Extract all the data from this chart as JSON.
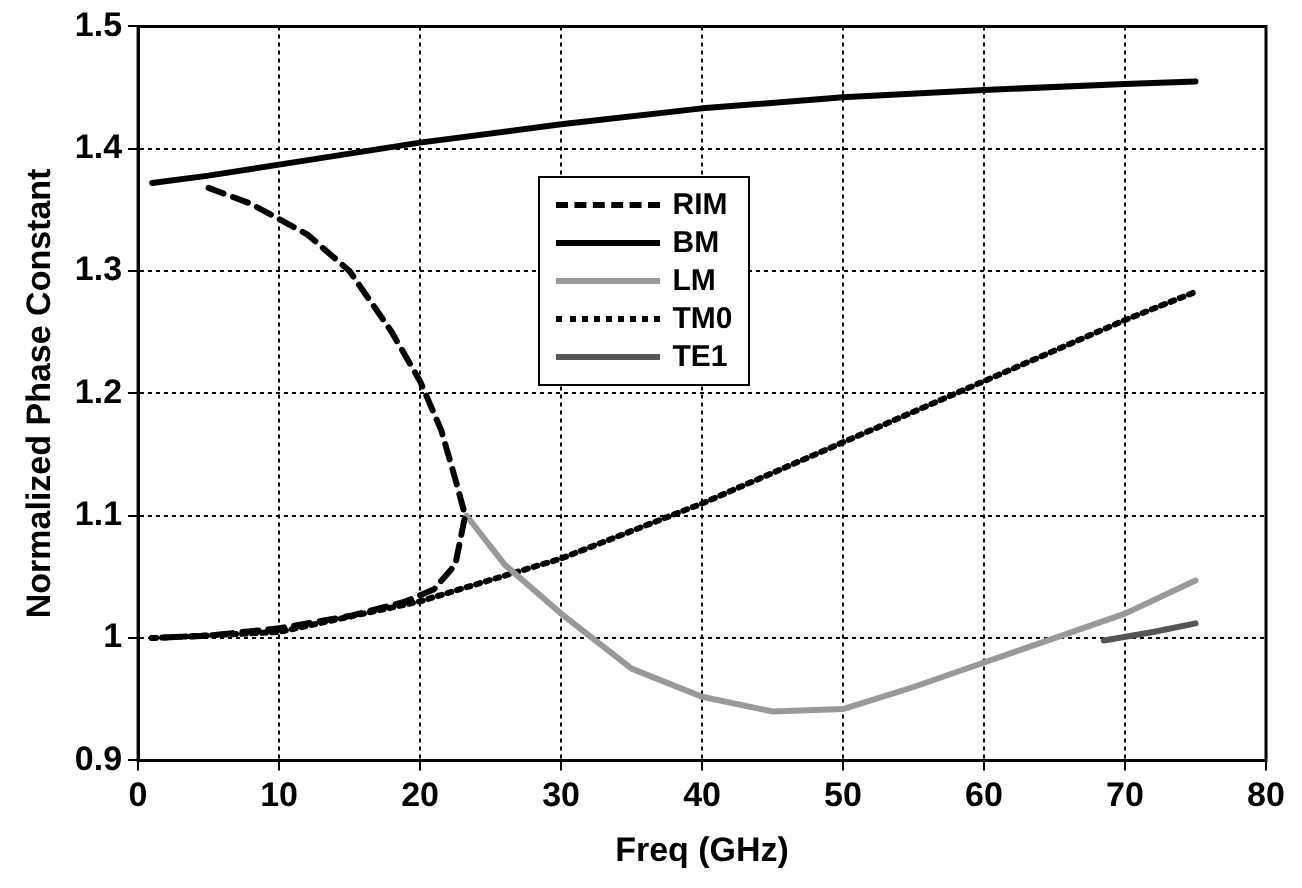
{
  "chart_data": {
    "type": "line",
    "xlabel": "Freq (GHz)",
    "ylabel": "Normalized Phase Constant",
    "xlim": [
      0,
      80
    ],
    "xticks": [
      0,
      10,
      20,
      30,
      40,
      50,
      60,
      70,
      80
    ],
    "ylim": [
      0.9,
      1.5
    ],
    "yticks": [
      0.9,
      1,
      1.1,
      1.2,
      1.3,
      1.4,
      1.5
    ],
    "grid": true,
    "legend": "top",
    "marker": "none",
    "series": [
      {
        "name": "RIM",
        "color": "#000000",
        "line_style": "dashed",
        "x": [
          5,
          8,
          12,
          15,
          18,
          20,
          21.5,
          22.5,
          23.2,
          22.5,
          21,
          19,
          15,
          10,
          5,
          1
        ],
        "values": [
          1.368,
          1.355,
          1.33,
          1.3,
          1.25,
          1.21,
          1.17,
          1.13,
          1.1,
          1.06,
          1.04,
          1.03,
          1.018,
          1.008,
          1.002,
          1
        ]
      },
      {
        "name": "BM",
        "color": "#000000",
        "line_style": "solid",
        "x": [
          1,
          5,
          10,
          20,
          30,
          40,
          50,
          60,
          70,
          75
        ],
        "values": [
          1.372,
          1.378,
          1.387,
          1.405,
          1.42,
          1.433,
          1.442,
          1.448,
          1.453,
          1.455
        ]
      },
      {
        "name": "LM",
        "color": "#999999",
        "line_style": "solid",
        "x": [
          23.3,
          26,
          30,
          35,
          40,
          45,
          50,
          55,
          60,
          65,
          70,
          75
        ],
        "values": [
          1.1,
          1.06,
          1.02,
          0.975,
          0.952,
          0.94,
          0.942,
          0.96,
          0.98,
          1,
          1.02,
          1.047
        ]
      },
      {
        "name": "TM0",
        "color": "#000000",
        "line_style": "dotted",
        "x": [
          1,
          10,
          20,
          30,
          40,
          50,
          60,
          70,
          75
        ],
        "values": [
          1,
          1.005,
          1.03,
          1.065,
          1.11,
          1.16,
          1.21,
          1.26,
          1.283
        ]
      },
      {
        "name": "TE1",
        "color": "#555555",
        "line_style": "solid",
        "x": [
          68.5,
          72,
          75
        ],
        "values": [
          0.998,
          1.005,
          1.012
        ]
      }
    ]
  }
}
